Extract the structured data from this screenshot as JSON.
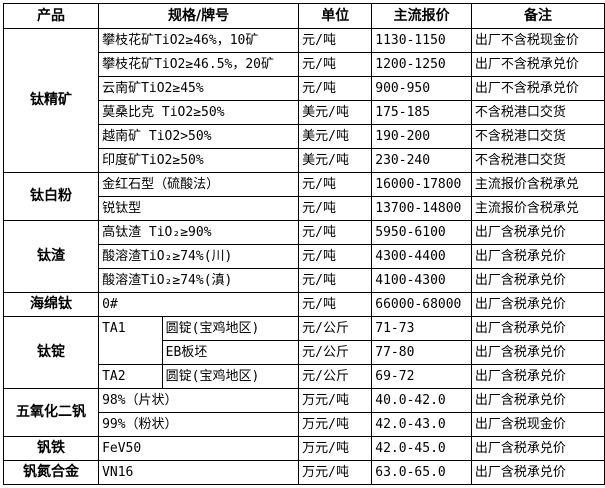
{
  "headers": [
    "产品",
    "规格/牌号",
    "单位",
    "主流报价",
    "备注"
  ],
  "groups": [
    {
      "product": "钛精矿",
      "rows": [
        {
          "spec": "攀枝花矿TiO2≥46%，10矿",
          "unit": "元/吨",
          "price": "1130-1150",
          "note": "出厂不含税现金价"
        },
        {
          "spec": "攀枝花矿TiO2≥46.5%，20矿",
          "unit": "元/吨",
          "price": "1200-1250",
          "note": "出厂不含税承兑价"
        },
        {
          "spec": "云南矿TiO2≥45%",
          "unit": "元/吨",
          "price": "900-950",
          "note": "出厂不含税承兑价"
        },
        {
          "spec": "莫桑比克 TiO2≥50%",
          "unit": "美元/吨",
          "price": "175-185",
          "note": "不含税港口交货"
        },
        {
          "spec": "越南矿 TiO2>50%",
          "unit": "美元/吨",
          "price": "190-200",
          "note": "不含税港口交货"
        },
        {
          "spec": "印度矿TiO2≥50%",
          "unit": "美元/吨",
          "price": "230-240",
          "note": "不含税港口交货"
        }
      ]
    },
    {
      "product": "钛白粉",
      "rows": [
        {
          "spec": "金红石型（硫酸法）",
          "unit": "元/吨",
          "price": "16000-17800",
          "note": "主流报价含税承兑"
        },
        {
          "spec": "锐钛型",
          "unit": "元/吨",
          "price": "13700-14800",
          "note": "主流报价含税承兑"
        }
      ]
    },
    {
      "product": "钛渣",
      "rows": [
        {
          "spec": "高钛渣 TiO₂≥90%",
          "unit": "元/吨",
          "price": "5950-6100",
          "note": "出厂含税承兑价"
        },
        {
          "spec": "酸溶渣TiO₂≥74%(川)",
          "unit": "元/吨",
          "price": "4300-4400",
          "note": "出厂含税承兑价"
        },
        {
          "spec": "酸溶渣TiO₂≥74%(滇)",
          "unit": "元/吨",
          "price": "4100-4300",
          "note": "出厂含税承兑价"
        }
      ]
    },
    {
      "product": "海绵钛",
      "rows": [
        {
          "spec": "0#",
          "unit": "元/吨",
          "price": "66000-68000",
          "note": "出厂含税承兑价"
        }
      ]
    },
    {
      "product": "钛锭",
      "subgroups": [
        {
          "grade": "TA1",
          "items": [
            {
              "form": "圆锭(宝鸡地区)",
              "unit": "元/公斤",
              "price": "71-73",
              "note": "出厂含税承兑价"
            },
            {
              "form": "EB板坯",
              "unit": "元/公斤",
              "price": "77-80",
              "note": "出厂含税承兑价"
            }
          ]
        },
        {
          "grade": "TA2",
          "items": [
            {
              "form": "圆锭(宝鸡地区)",
              "unit": "元/公斤",
              "price": "69-72",
              "note": "出厂含税承兑价"
            }
          ]
        }
      ]
    },
    {
      "product": "五氧化二钒",
      "rows": [
        {
          "spec": "98%（片状）",
          "unit": "万元/吨",
          "price": "40.0-42.0",
          "note": "出厂含税承兑价"
        },
        {
          "spec": "99%（粉状）",
          "unit": "万元/吨",
          "price": "42.0-43.0",
          "note": "出厂含税现金价"
        }
      ]
    },
    {
      "product": "钒铁",
      "rows": [
        {
          "spec": "FeV50",
          "unit": "万元/吨",
          "price": "42.0-45.0",
          "note": "出厂含税承兑价"
        }
      ]
    },
    {
      "product": "钒氮合金",
      "rows": [
        {
          "spec": "VN16",
          "unit": "万元/吨",
          "price": "63.0-65.0",
          "note": "出厂含税承兑价"
        }
      ]
    }
  ]
}
